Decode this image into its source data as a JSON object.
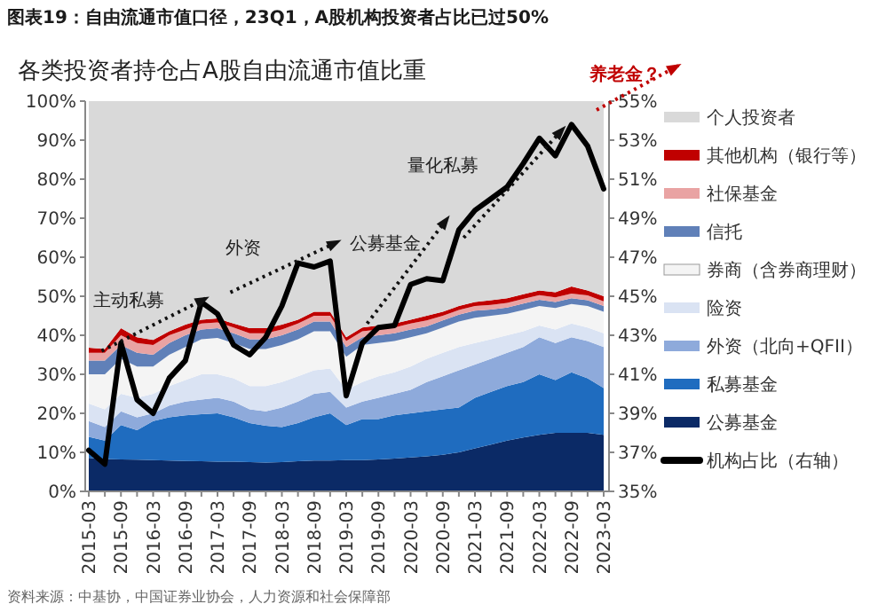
{
  "chart_data": {
    "type": "area",
    "stacked": true,
    "title": "图表19：自由流通市值口径，23Q1，A股机构投资者占比已过50%",
    "subtitle": "各类投资者持仓占A股自由流通市值比重",
    "annotations": [
      "主动私募",
      "外资",
      "公募基金",
      "量化私募",
      "养老金？",
      "资料来源：中基协，中国证券业协会，人力资源和社会保障部"
    ],
    "categories": [
      "2015-03",
      null,
      "2015-09",
      null,
      "2016-03",
      null,
      "2016-09",
      null,
      "2017-03",
      null,
      "2017-09",
      null,
      "2018-03",
      null,
      "2018-09",
      null,
      "2019-03",
      null,
      "2019-09",
      null,
      "2020-03",
      null,
      "2020-09",
      null,
      "2021-03",
      null,
      "2021-09",
      null,
      "2022-03",
      null,
      "2022-09",
      null,
      "2023-03"
    ],
    "ylim": [
      0,
      100
    ],
    "yticks": [
      {
        "value": 0,
        "label": "0%"
      },
      {
        "value": 10,
        "label": "10%"
      },
      {
        "value": 20,
        "label": "20%"
      },
      {
        "value": 30,
        "label": "30%"
      },
      {
        "value": 40,
        "label": "40%"
      },
      {
        "value": 50,
        "label": "50%"
      },
      {
        "value": 60,
        "label": "60%"
      },
      {
        "value": 70,
        "label": "70%"
      },
      {
        "value": 80,
        "label": "80%"
      },
      {
        "value": 90,
        "label": "90%"
      },
      {
        "value": 100,
        "label": "100%"
      }
    ],
    "y2lim": [
      35,
      55
    ],
    "y2ticks": [
      {
        "value": 35,
        "label": "35%"
      },
      {
        "value": 37,
        "label": "37%"
      },
      {
        "value": 39,
        "label": "39%"
      },
      {
        "value": 41,
        "label": "41%"
      },
      {
        "value": 43,
        "label": "43%"
      },
      {
        "value": 45,
        "label": "45%"
      },
      {
        "value": 47,
        "label": "47%"
      },
      {
        "value": 49,
        "label": "49%"
      },
      {
        "value": 51,
        "label": "51%"
      },
      {
        "value": 53,
        "label": "53%"
      },
      {
        "value": 55,
        "label": "55%"
      }
    ],
    "legend": "right",
    "series": [
      {
        "name": "公募基金",
        "color": "#0b2a66",
        "values": [
          8.6,
          8.3,
          8.2,
          8.1,
          8,
          7.9,
          7.8,
          7.7,
          7.6,
          7.6,
          7.5,
          7.4,
          7.5,
          7.7,
          7.9,
          7.9,
          8,
          8,
          8.2,
          8.4,
          8.7,
          9,
          9.4,
          10,
          11,
          12,
          13,
          13.8,
          14.5,
          15,
          15,
          15,
          14.5
        ]
      },
      {
        "name": "私募基金",
        "color": "#1f6cbf",
        "values": [
          5.4,
          4.7,
          8.8,
          7.6,
          10,
          11.1,
          11.7,
          12.1,
          12.4,
          11.4,
          10,
          9.4,
          9,
          9.8,
          11.1,
          12.1,
          9,
          10.5,
          10.3,
          11.1,
          11.3,
          11.5,
          11.6,
          11.5,
          13,
          13.5,
          14,
          14.2,
          15.5,
          13.5,
          15.5,
          14,
          12
        ]
      },
      {
        "name": "外资（北向+QFII）",
        "color": "#8eaadb",
        "values": [
          4,
          3.5,
          3.5,
          3.3,
          2,
          3,
          3.5,
          3.7,
          4,
          4,
          3.5,
          3.7,
          5,
          5.5,
          6,
          5.5,
          4.5,
          4.5,
          5.5,
          5.5,
          6,
          7.5,
          8.5,
          9.5,
          8.5,
          8.5,
          8.5,
          9,
          9.5,
          9.5,
          9,
          9.5,
          10.5
        ]
      },
      {
        "name": "险资",
        "color": "#dae3f3",
        "values": [
          4.5,
          4.5,
          4.5,
          5,
          5,
          5,
          5.5,
          6.5,
          6,
          6,
          6,
          6.5,
          6.5,
          6.5,
          6,
          6,
          4.5,
          5,
          5.5,
          5.5,
          6,
          6,
          6,
          6,
          5.5,
          5,
          4.5,
          4,
          3,
          3.5,
          3.5,
          3.5,
          3.5
        ]
      },
      {
        "name": "券商（含券商理财）",
        "color": "#f4f4f4",
        "values": [
          7.5,
          9,
          9,
          8,
          7,
          8,
          8.5,
          9,
          9.3,
          9,
          9.5,
          9.5,
          9.5,
          9.5,
          10,
          9.5,
          8.5,
          9.5,
          8.5,
          8,
          7.5,
          6.5,
          6.5,
          6.5,
          6.5,
          6,
          5.5,
          5.5,
          5,
          5.5,
          5,
          5.5,
          5.5
        ]
      },
      {
        "name": "信托",
        "color": "#6080b8",
        "values": [
          3.5,
          3.5,
          3.5,
          3.5,
          3,
          3,
          3,
          2.5,
          2.5,
          2.5,
          2.5,
          2.5,
          2.5,
          2.5,
          2.5,
          2.5,
          2.5,
          2,
          2,
          2,
          2,
          1.8,
          1.8,
          1.8,
          1.8,
          1.6,
          1.6,
          1.6,
          1.6,
          1.5,
          1.5,
          1.5,
          1.5
        ]
      },
      {
        "name": "社保基金",
        "color": "#e9a3a3",
        "values": [
          2,
          2,
          2.5,
          2.5,
          2.5,
          2,
          1.5,
          1.5,
          1.5,
          1.5,
          1.5,
          1.5,
          1.5,
          1.5,
          1.5,
          1.5,
          1.5,
          1.5,
          1.5,
          1.5,
          1.5,
          1.5,
          1.2,
          1.2,
          1.2,
          1.2,
          1.2,
          1.2,
          1.2,
          1.2,
          1.2,
          1.2,
          1.2
        ]
      },
      {
        "name": "其他机构（银行等）",
        "color": "#c00000",
        "values": [
          1.3,
          1,
          1.8,
          1.5,
          1.3,
          1,
          1.2,
          1,
          1,
          1,
          1.3,
          1.3,
          1.2,
          1,
          1,
          1,
          1,
          1,
          1,
          1,
          1,
          1.2,
          1,
          1,
          1,
          1.2,
          1.2,
          1.2,
          1.2,
          1.3,
          1.8,
          1.3,
          1.3
        ]
      },
      {
        "name": "个人投资者",
        "color": "#d9d9d9",
        "values": [
          63.2,
          63.5,
          58.2,
          60.5,
          61.2,
          59,
          57.3,
          56,
          55.7,
          57,
          58.2,
          58.2,
          57.3,
          56,
          54,
          54,
          60.5,
          58,
          57.5,
          57,
          56,
          55,
          54,
          52.5,
          51.5,
          51,
          50.5,
          49.5,
          48.5,
          49,
          47.5,
          48.5,
          50
        ]
      },
      {
        "name": "机构占比（右轴）",
        "type": "line",
        "axis": "y2",
        "color": "#000000",
        "values": [
          37.1,
          36.4,
          42.6,
          39.7,
          39,
          40.8,
          41.7,
          44.7,
          44.1,
          42.5,
          42,
          42.9,
          44.5,
          46.7,
          46.5,
          46.8,
          39.9,
          42.6,
          43.4,
          43.5,
          45.6,
          45.9,
          45.8,
          48.4,
          49.4,
          50,
          50.6,
          51.8,
          53.1,
          52.2,
          53.8,
          52.7,
          50.5
        ]
      }
    ]
  }
}
